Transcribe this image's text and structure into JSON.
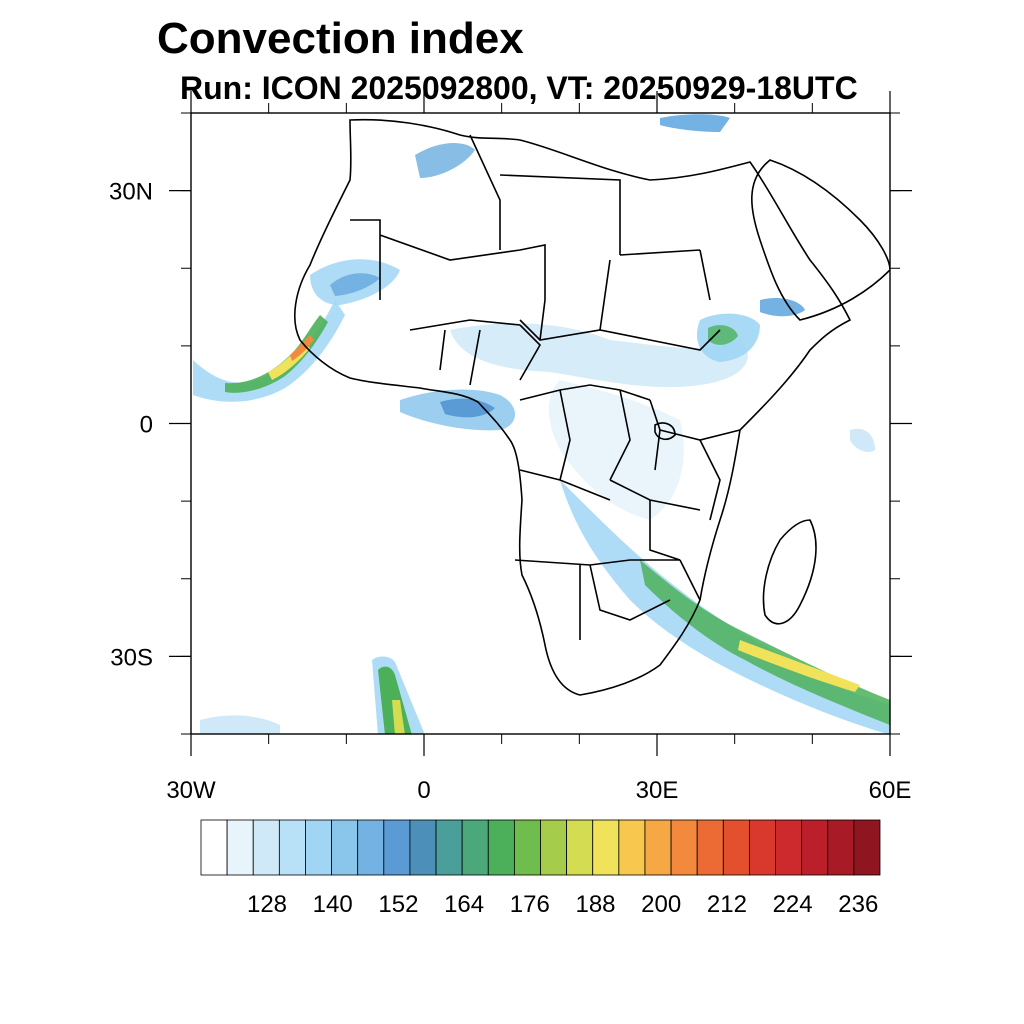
{
  "title": "Convection index",
  "subtitle": "Run: ICON 2025092800,  VT: 20250929-18UTC",
  "axes": {
    "lon_range": [
      -30,
      60
    ],
    "lat_range": [
      -40,
      40
    ],
    "x_ticks": [
      {
        "value": -30,
        "label": "30W"
      },
      {
        "value": 0,
        "label": "0"
      },
      {
        "value": 30,
        "label": "30E"
      },
      {
        "value": 60,
        "label": "60E"
      }
    ],
    "y_ticks": [
      {
        "value": 30,
        "label": "30N"
      },
      {
        "value": 0,
        "label": "0"
      },
      {
        "value": -30,
        "label": "30S"
      }
    ]
  },
  "colorbar": {
    "labels": [
      "128",
      "140",
      "152",
      "164",
      "176",
      "188",
      "200",
      "212",
      "224",
      "236"
    ],
    "colors": [
      "#ffffff",
      "#e8f4fb",
      "#cfe9f8",
      "#b8e0f6",
      "#a0d6f4",
      "#8ac6ec",
      "#73b2e2",
      "#5b9bd5",
      "#4c8fb8",
      "#4a9f9a",
      "#4aa87a",
      "#4cb05a",
      "#6fbd4c",
      "#a6cc4c",
      "#d4dc52",
      "#f0e25a",
      "#f8c84e",
      "#f5a844",
      "#f2893c",
      "#ec6a34",
      "#e2502e",
      "#d9382c",
      "#cc2a2c",
      "#bb1f2a",
      "#a81b26",
      "#8f1620"
    ]
  }
}
